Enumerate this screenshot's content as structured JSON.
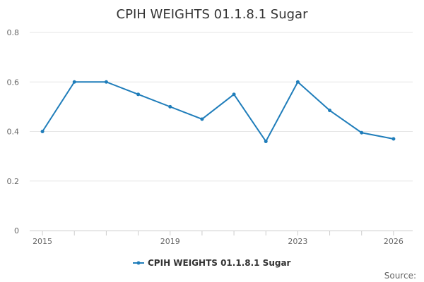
{
  "chart_data": {
    "type": "line",
    "title": "CPIH WEIGHTS 01.1.8.1 Sugar",
    "xlabel": "",
    "ylabel": "",
    "x": [
      2015,
      2016,
      2017,
      2018,
      2019,
      2020,
      2021,
      2022,
      2023,
      2024,
      2025,
      2026
    ],
    "series": [
      {
        "name": "CPIH WEIGHTS 01.1.8.1 Sugar",
        "values": [
          0.4,
          0.6,
          0.6,
          0.55,
          0.5,
          0.45,
          0.55,
          0.36,
          0.6,
          0.485,
          0.395,
          0.37
        ]
      }
    ],
    "xlim": [
      2014.6,
      2026.6
    ],
    "ylim": [
      0,
      0.8
    ],
    "x_tick_labels": [
      "2015",
      "2019",
      "2023",
      "2026"
    ],
    "y_tick_labels": [
      "0",
      "0.2",
      "0.4",
      "0.6",
      "0.8"
    ],
    "grid": true,
    "legend_position": "bottom-center",
    "series_color": "#1f7dba",
    "grid_color": "#e6e6e6",
    "source_label": "Source:"
  }
}
